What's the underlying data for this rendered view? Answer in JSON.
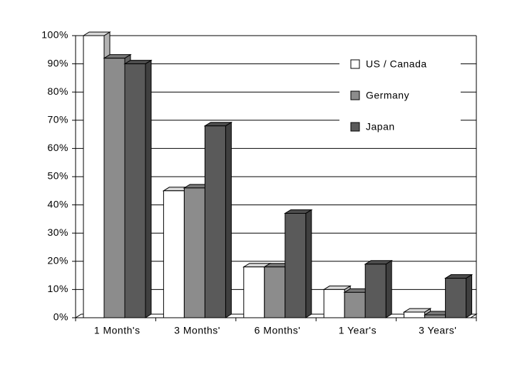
{
  "chart_data": {
    "type": "bar3d",
    "categories": [
      "1 Month's",
      "3 Months'",
      "6 Months'",
      "1 Year's",
      "3 Years'"
    ],
    "series": [
      {
        "name": "US / Canada",
        "color": "#ffffff",
        "values": [
          100,
          45,
          18,
          10,
          2
        ]
      },
      {
        "name": "Germany",
        "color": "#8c8c8c",
        "values": [
          92,
          46,
          18,
          9,
          1
        ]
      },
      {
        "name": "Japan",
        "color": "#5a5a5a",
        "values": [
          90,
          68,
          37,
          19,
          14
        ]
      }
    ],
    "ylim": [
      0,
      100
    ],
    "yticks": [
      {
        "value": 0,
        "label": "0%"
      },
      {
        "value": 10,
        "label": "10%"
      },
      {
        "value": 20,
        "label": "20%"
      },
      {
        "value": 30,
        "label": "30%"
      },
      {
        "value": 40,
        "label": "40%"
      },
      {
        "value": 50,
        "label": "50%"
      },
      {
        "value": 60,
        "label": "60%"
      },
      {
        "value": 70,
        "label": "70%"
      },
      {
        "value": 80,
        "label": "80%"
      },
      {
        "value": 90,
        "label": "90%"
      },
      {
        "value": 100,
        "label": "100%"
      }
    ],
    "grid": true,
    "legend": "top-right"
  }
}
